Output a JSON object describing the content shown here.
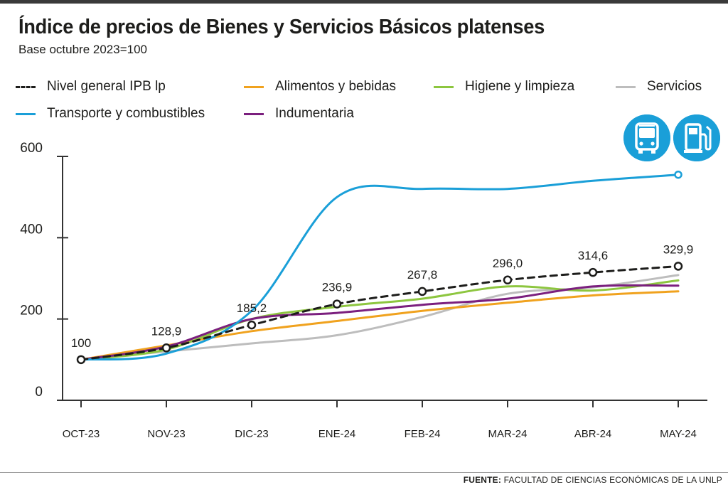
{
  "header": {
    "title": "Índice de precios de Bienes y Servicios Básicos platenses",
    "subtitle": "Base octubre 2023=100"
  },
  "icons": [
    "bus-icon",
    "fuel-pump-icon"
  ],
  "source": {
    "label": "FUENTE:",
    "text": "FACULTAD DE CIENCIAS ECONÓMICAS DE LA UNLP"
  },
  "chart_data": {
    "type": "line",
    "categories": [
      "OCT-23",
      "NOV-23",
      "DIC-23",
      "ENE-24",
      "FEB-24",
      "MAR-24",
      "ABR-24",
      "MAY-24"
    ],
    "yticks": [
      "0",
      "200",
      "400",
      "600"
    ],
    "ylim": [
      0,
      600
    ],
    "grid": false,
    "legend_position": "top",
    "series": [
      {
        "name": "Nivel general IPB lp",
        "color": "#1d1d1b",
        "dashed": true,
        "markers": true,
        "values": [
          100,
          128.9,
          185.2,
          236.9,
          267.8,
          296.0,
          314.6,
          329.9
        ],
        "labels": [
          "100",
          "128,9",
          "185,2",
          "236,9",
          "267,8",
          "296,0",
          "314,6",
          "329,9"
        ]
      },
      {
        "name": "Alimentos y bebidas",
        "color": "#f0a21e",
        "values": [
          100,
          135,
          170,
          195,
          220,
          240,
          258,
          268
        ]
      },
      {
        "name": "Higiene y limpieza",
        "color": "#8dc63f",
        "values": [
          100,
          125,
          200,
          230,
          250,
          280,
          270,
          295
        ]
      },
      {
        "name": "Servicios",
        "color": "#bdbdbd",
        "values": [
          100,
          120,
          140,
          160,
          205,
          262,
          278,
          308
        ]
      },
      {
        "name": "Transporte y combustibles",
        "color": "#1a9fd8",
        "end_marker": true,
        "values": [
          100,
          115,
          220,
          500,
          520,
          520,
          540,
          555
        ]
      },
      {
        "name": "Indumentaria",
        "color": "#7b1f7e",
        "values": [
          100,
          132,
          200,
          215,
          235,
          250,
          280,
          282
        ]
      }
    ]
  }
}
